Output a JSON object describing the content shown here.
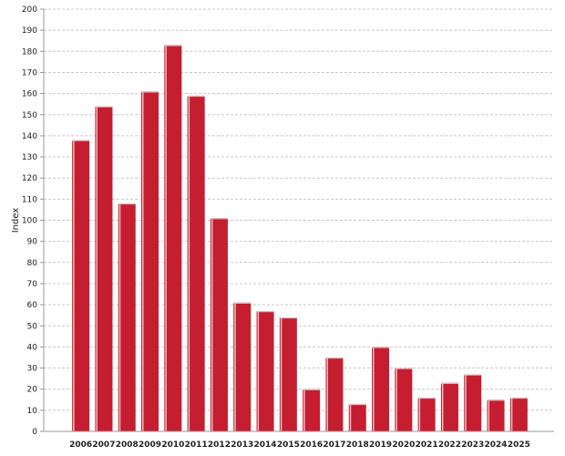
{
  "colors": {
    "bar": "#c41e30",
    "bar_highlight": "#f0b9be",
    "grid": "#c8c8c8",
    "axis": "#999999"
  },
  "chart_data": {
    "type": "bar",
    "title": "",
    "xlabel": "",
    "ylabel": "Index",
    "ylim": [
      0,
      200
    ],
    "ytick_step": 10,
    "grid": true,
    "legend": "none",
    "categories": [
      "2006",
      "2007",
      "2008",
      "2009",
      "2010",
      "2011",
      "2012",
      "2013",
      "2014",
      "2015",
      "2016",
      "2017",
      "2018",
      "2019",
      "2020",
      "2021",
      "2022",
      "2023",
      "2024",
      "2025"
    ],
    "values": [
      138,
      154,
      108,
      161,
      183,
      159,
      101,
      61,
      57,
      54,
      20,
      35,
      13,
      40,
      30,
      16,
      23,
      27,
      15,
      16
    ]
  }
}
